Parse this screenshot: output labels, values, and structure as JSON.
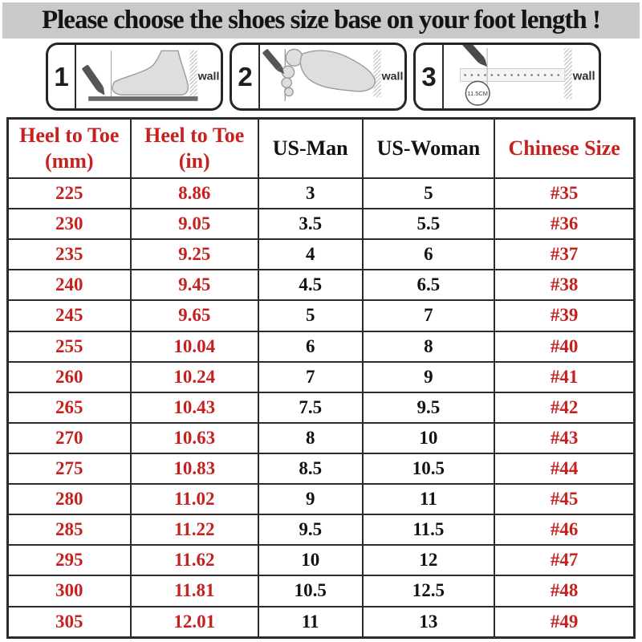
{
  "title": "Please choose the shoes size base on your foot length !",
  "panels": [
    {
      "number": "1",
      "wall_label": "wall"
    },
    {
      "number": "2",
      "wall_label": "wall"
    },
    {
      "number": "3",
      "wall_label": "wall",
      "circle_label": "11.5CM"
    }
  ],
  "table": {
    "headers": [
      "Heel to Toe\n(mm)",
      "Heel to Toe\n(in)",
      "US-Man",
      "US-Woman",
      "Chinese Size"
    ],
    "column_colors": [
      "red",
      "red",
      "black",
      "black",
      "red"
    ]
  },
  "chart_data": {
    "type": "table",
    "title": "Please choose the shoes size base on your foot length !",
    "columns": [
      "Heel to Toe (mm)",
      "Heel to Toe (in)",
      "US-Man",
      "US-Woman",
      "Chinese Size"
    ],
    "rows": [
      [
        "225",
        "8.86",
        "3",
        "5",
        "#35"
      ],
      [
        "230",
        "9.05",
        "3.5",
        "5.5",
        "#36"
      ],
      [
        "235",
        "9.25",
        "4",
        "6",
        "#37"
      ],
      [
        "240",
        "9.45",
        "4.5",
        "6.5",
        "#38"
      ],
      [
        "245",
        "9.65",
        "5",
        "7",
        "#39"
      ],
      [
        "255",
        "10.04",
        "6",
        "8",
        "#40"
      ],
      [
        "260",
        "10.24",
        "7",
        "9",
        "#41"
      ],
      [
        "265",
        "10.43",
        "7.5",
        "9.5",
        "#42"
      ],
      [
        "270",
        "10.63",
        "8",
        "10",
        "#43"
      ],
      [
        "275",
        "10.83",
        "8.5",
        "10.5",
        "#44"
      ],
      [
        "280",
        "11.02",
        "9",
        "11",
        "#45"
      ],
      [
        "285",
        "11.22",
        "9.5",
        "11.5",
        "#46"
      ],
      [
        "295",
        "11.62",
        "10",
        "12",
        "#47"
      ],
      [
        "300",
        "11.81",
        "10.5",
        "12.5",
        "#48"
      ],
      [
        "305",
        "12.01",
        "11",
        "13",
        "#49"
      ]
    ]
  },
  "colors": {
    "accent_red": "#c7211f",
    "title_bg": "#c9c9c9",
    "border": "#2b2b2b"
  }
}
